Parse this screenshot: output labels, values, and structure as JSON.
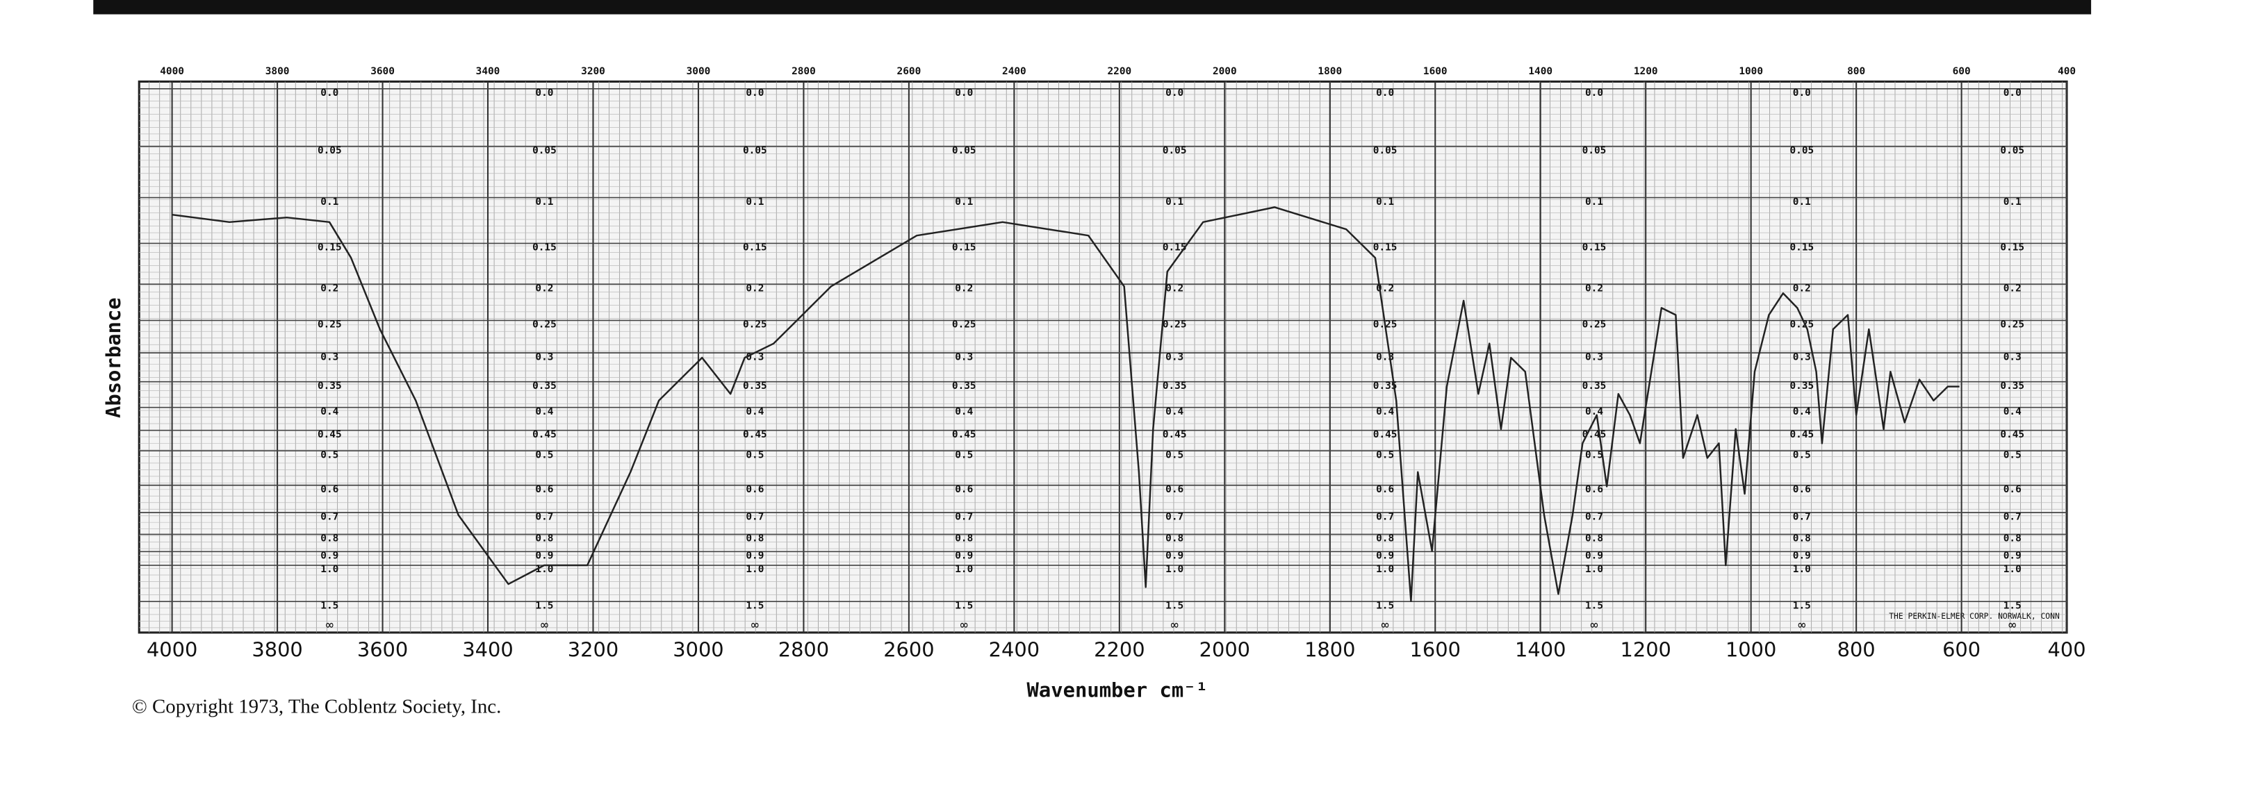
{
  "chart_data": {
    "type": "line",
    "x_label": "Wavenumber cm⁻¹",
    "y_label": "Absorbance",
    "y_end_label": "∞",
    "note": "THE PERKIN-ELMER CORP. NORWALK, CONN",
    "copyright": "© Copyright 1973, The Coblentz Society, Inc.",
    "yscale": "absorbance",
    "color": "#222222",
    "grid": true,
    "xlim": [
      4000,
      400
    ],
    "xticks": [
      4000,
      3800,
      3600,
      3400,
      3200,
      3000,
      2800,
      2600,
      2400,
      2200,
      2000,
      1800,
      1600,
      1400,
      1200,
      1000,
      800,
      600,
      400
    ],
    "ylim": [
      0,
      null
    ],
    "yticks": [
      {
        "value": 0,
        "label": "0.0"
      },
      0.05,
      0.1,
      0.15,
      0.2,
      0.25,
      0.3,
      0.35,
      0.4,
      0.45,
      0.5,
      0.6,
      0.7,
      0.8,
      0.9,
      {
        "value": 1,
        "label": "1.0"
      },
      1.5
    ],
    "x": [
      4000,
      3891,
      3782,
      3701,
      3660,
      3605,
      3537,
      3456,
      3361,
      3293,
      3211,
      3129,
      3075,
      2993,
      2939,
      2912,
      2857,
      2748,
      2585,
      2422,
      2259,
      2191,
      2163,
      2150,
      2136,
      2109,
      2041,
      1905,
      1769,
      1714,
      1674,
      1646,
      1633,
      1606,
      1578,
      1546,
      1518,
      1497,
      1475,
      1456,
      1429,
      1393,
      1366,
      1339,
      1320,
      1293,
      1274,
      1252,
      1230,
      1211,
      1170,
      1143,
      1129,
      1102,
      1083,
      1061,
      1048,
      1029,
      1012,
      993,
      966,
      939,
      912,
      893,
      876,
      865,
      844,
      816,
      800,
      776,
      748,
      735,
      708,
      680,
      653,
      626,
      604
    ],
    "values": [
      0.118,
      0.126,
      0.121,
      0.126,
      0.167,
      0.263,
      0.386,
      0.71,
      1.19,
      1.0,
      1.0,
      0.559,
      0.386,
      0.308,
      0.373,
      0.308,
      0.285,
      0.203,
      0.141,
      0.126,
      0.141,
      0.203,
      0.559,
      1.23,
      0.447,
      0.184,
      0.126,
      0.11,
      0.134,
      0.167,
      0.386,
      1.49,
      0.559,
      0.896,
      0.359,
      0.222,
      0.373,
      0.285,
      0.447,
      0.308,
      0.332,
      0.71,
      1.34,
      0.71,
      0.481,
      0.416,
      0.604,
      0.373,
      0.416,
      0.481,
      0.232,
      0.242,
      0.519,
      0.416,
      0.519,
      0.481,
      1.0,
      0.447,
      0.629,
      0.332,
      0.242,
      0.212,
      0.232,
      0.263,
      0.332,
      0.481,
      0.263,
      0.242,
      0.416,
      0.263,
      0.447,
      0.332,
      0.432,
      0.346,
      0.386,
      0.359,
      0.359
    ]
  }
}
